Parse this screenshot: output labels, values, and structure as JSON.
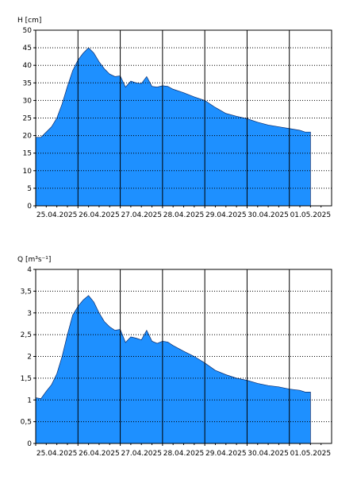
{
  "chart_data": [
    {
      "type": "area",
      "title": "",
      "ylabel": "H [cm]",
      "xlabel": "",
      "ylim": [
        0,
        50
      ],
      "yticks": [
        0,
        5,
        10,
        15,
        20,
        25,
        30,
        35,
        40,
        45,
        50
      ],
      "ytick_labels": [
        "0",
        "5",
        "10",
        "15",
        "20",
        "25",
        "30",
        "35",
        "40",
        "45",
        "50"
      ],
      "xlim": [
        "2025-04-25 00:00",
        "2025-05-02 00:00"
      ],
      "xticks": [
        "2025-04-25",
        "2025-04-26",
        "2025-04-27",
        "2025-04-28",
        "2025-04-29",
        "2025-04-30",
        "2025-05-01"
      ],
      "xtick_labels": [
        "25.04.2025",
        "26.04.2025",
        "27.04.2025",
        "28.04.2025",
        "29.04.2025",
        "30.04.2025",
        "01.05.2025"
      ],
      "grid": true,
      "fill_color": "#1e90ff",
      "series": [
        {
          "x": [
            "2025-04-25 00:00",
            "2025-04-25 03:00",
            "2025-04-25 06:00",
            "2025-04-25 09:00",
            "2025-04-25 12:00",
            "2025-04-25 15:00",
            "2025-04-25 18:00",
            "2025-04-25 21:00",
            "2025-04-26 00:00",
            "2025-04-26 03:00",
            "2025-04-26 06:00",
            "2025-04-26 09:00",
            "2025-04-26 12:00",
            "2025-04-26 15:00",
            "2025-04-26 18:00",
            "2025-04-26 21:00",
            "2025-04-27 00:00",
            "2025-04-27 03:00",
            "2025-04-27 06:00",
            "2025-04-27 09:00",
            "2025-04-27 12:00",
            "2025-04-27 15:00",
            "2025-04-27 18:00",
            "2025-04-27 21:00",
            "2025-04-28 00:00",
            "2025-04-28 03:00",
            "2025-04-28 06:00",
            "2025-04-28 12:00",
            "2025-04-28 18:00",
            "2025-04-29 00:00",
            "2025-04-29 06:00",
            "2025-04-29 12:00",
            "2025-04-29 18:00",
            "2025-04-30 00:00",
            "2025-04-30 06:00",
            "2025-04-30 12:00",
            "2025-04-30 18:00",
            "2025-05-01 00:00",
            "2025-05-01 06:00",
            "2025-05-01 09:00",
            "2025-05-01 12:00"
          ],
          "values": [
            19.5,
            19.5,
            21.0,
            22.5,
            25.0,
            29.0,
            34.0,
            38.5,
            41.5,
            43.5,
            45.0,
            43.5,
            41.0,
            39.0,
            37.5,
            36.8,
            37.0,
            33.8,
            35.5,
            35.0,
            34.8,
            36.8,
            34.0,
            33.8,
            34.2,
            34.0,
            33.2,
            32.2,
            31.0,
            30.0,
            28.0,
            26.3,
            25.5,
            24.8,
            23.8,
            23.0,
            22.5,
            22.0,
            21.5,
            21.0,
            21.0
          ]
        }
      ]
    },
    {
      "type": "area",
      "title": "",
      "ylabel": "Q [m³s⁻¹]",
      "xlabel": "",
      "ylim": [
        0,
        4
      ],
      "yticks": [
        0,
        0.5,
        1,
        1.5,
        2,
        2.5,
        3,
        3.5,
        4
      ],
      "ytick_labels": [
        "0",
        "0,5",
        "1",
        "1,5",
        "2",
        "2,5",
        "3",
        "3,5",
        "4"
      ],
      "xlim": [
        "2025-04-25 00:00",
        "2025-05-02 00:00"
      ],
      "xticks": [
        "2025-04-25",
        "2025-04-26",
        "2025-04-27",
        "2025-04-28",
        "2025-04-29",
        "2025-04-30",
        "2025-05-01"
      ],
      "xtick_labels": [
        "25.04.2025",
        "26.04.2025",
        "27.04.2025",
        "28.04.2025",
        "29.04.2025",
        "30.04.2025",
        "01.05.2025"
      ],
      "grid": true,
      "fill_color": "#1e90ff",
      "series": [
        {
          "x": [
            "2025-04-25 00:00",
            "2025-04-25 03:00",
            "2025-04-25 06:00",
            "2025-04-25 09:00",
            "2025-04-25 12:00",
            "2025-04-25 15:00",
            "2025-04-25 18:00",
            "2025-04-25 21:00",
            "2025-04-26 00:00",
            "2025-04-26 03:00",
            "2025-04-26 06:00",
            "2025-04-26 09:00",
            "2025-04-26 12:00",
            "2025-04-26 15:00",
            "2025-04-26 18:00",
            "2025-04-26 21:00",
            "2025-04-27 00:00",
            "2025-04-27 03:00",
            "2025-04-27 06:00",
            "2025-04-27 09:00",
            "2025-04-27 12:00",
            "2025-04-27 15:00",
            "2025-04-27 18:00",
            "2025-04-27 21:00",
            "2025-04-28 00:00",
            "2025-04-28 03:00",
            "2025-04-28 06:00",
            "2025-04-28 12:00",
            "2025-04-28 18:00",
            "2025-04-29 00:00",
            "2025-04-29 06:00",
            "2025-04-29 12:00",
            "2025-04-29 18:00",
            "2025-04-30 00:00",
            "2025-04-30 06:00",
            "2025-04-30 12:00",
            "2025-04-30 18:00",
            "2025-05-01 00:00",
            "2025-05-01 06:00",
            "2025-05-01 09:00",
            "2025-05-01 12:00"
          ],
          "values": [
            1.05,
            1.03,
            1.2,
            1.35,
            1.6,
            2.0,
            2.5,
            2.95,
            3.15,
            3.3,
            3.4,
            3.25,
            3.0,
            2.8,
            2.68,
            2.6,
            2.62,
            2.32,
            2.45,
            2.42,
            2.38,
            2.6,
            2.35,
            2.3,
            2.35,
            2.33,
            2.25,
            2.12,
            2.0,
            1.85,
            1.68,
            1.58,
            1.5,
            1.45,
            1.38,
            1.33,
            1.3,
            1.25,
            1.22,
            1.18,
            1.18
          ]
        }
      ]
    }
  ]
}
